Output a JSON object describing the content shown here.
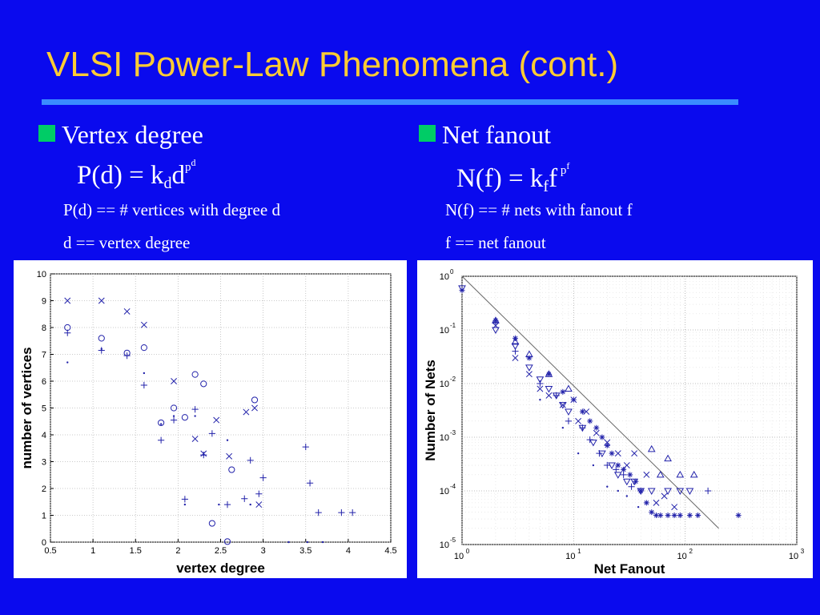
{
  "slide": {
    "title": "VLSI Power-Law Phenomena (cont.)",
    "colors": {
      "background": "#0a0aee",
      "title": "#ffcc33",
      "rule": "#3a8cff",
      "bullet": "#00cc66",
      "marker": "#2222aa"
    }
  },
  "left": {
    "bullet": "Vertex degree",
    "formula": {
      "lhs": "P(d) = k",
      "sub": "d",
      "base": "d",
      "exp": "p",
      "exp_sub": "d"
    },
    "notes": [
      "P(d) == # vertices with degree d",
      "d == vertex degree"
    ]
  },
  "right": {
    "bullet": "Net fanout",
    "formula": {
      "lhs": "N(f) = k",
      "sub": "f",
      "base": "f",
      "exp": "p",
      "exp_sub": "f"
    },
    "notes": [
      "N(f) == # nets with fanout f",
      "f == net fanout"
    ]
  },
  "chart_data": [
    {
      "type": "scatter",
      "title": "",
      "xlabel": "vertex degree",
      "ylabel": "number of vertices",
      "xlim": [
        0.5,
        4.5
      ],
      "ylim": [
        0,
        10
      ],
      "xticks": [
        "0.5",
        "1",
        "1.5",
        "2",
        "2.5",
        "3",
        "3.5",
        "4",
        "4.5"
      ],
      "yticks": [
        "0",
        "1",
        "2",
        "3",
        "4",
        "5",
        "6",
        "7",
        "8",
        "9",
        "10"
      ],
      "grid": true,
      "series": [
        {
          "marker": "x",
          "points": [
            [
              0.7,
              9.0
            ],
            [
              1.1,
              9.0
            ],
            [
              1.4,
              8.6
            ],
            [
              1.6,
              8.1
            ],
            [
              1.95,
              6.0
            ],
            [
              2.2,
              3.85
            ],
            [
              2.3,
              3.3
            ],
            [
              2.45,
              4.55
            ],
            [
              2.6,
              3.2
            ],
            [
              2.8,
              4.85
            ],
            [
              2.9,
              5.0
            ],
            [
              2.95,
              1.4
            ]
          ]
        },
        {
          "marker": "o",
          "points": [
            [
              0.7,
              8.0
            ],
            [
              1.1,
              7.6
            ],
            [
              1.4,
              7.05
            ],
            [
              1.6,
              7.25
            ],
            [
              1.8,
              4.45
            ],
            [
              1.95,
              5.0
            ],
            [
              2.08,
              4.65
            ],
            [
              2.2,
              6.25
            ],
            [
              2.3,
              5.9
            ],
            [
              2.4,
              0.7
            ],
            [
              2.58,
              0.02
            ],
            [
              2.63,
              2.7
            ],
            [
              2.9,
              5.3
            ]
          ]
        },
        {
          "marker": "+",
          "points": [
            [
              0.7,
              7.8
            ],
            [
              1.1,
              7.15
            ],
            [
              1.4,
              6.95
            ],
            [
              1.6,
              5.85
            ],
            [
              1.8,
              3.8
            ],
            [
              1.95,
              4.55
            ],
            [
              2.08,
              1.6
            ],
            [
              2.2,
              4.95
            ],
            [
              2.3,
              3.25
            ],
            [
              2.4,
              4.05
            ],
            [
              2.58,
              1.4
            ],
            [
              2.78,
              1.62
            ],
            [
              2.85,
              3.05
            ],
            [
              2.95,
              1.8
            ],
            [
              3.0,
              2.4
            ],
            [
              3.5,
              3.55
            ],
            [
              3.55,
              2.2
            ],
            [
              3.65,
              1.1
            ],
            [
              3.92,
              1.1
            ],
            [
              4.05,
              1.1
            ]
          ]
        },
        {
          "marker": ".",
          "points": [
            [
              0.7,
              6.7
            ],
            [
              1.1,
              7.2
            ],
            [
              1.6,
              6.3
            ],
            [
              1.8,
              4.4
            ],
            [
              1.95,
              4.7
            ],
            [
              2.08,
              1.4
            ],
            [
              2.2,
              4.7
            ],
            [
              2.3,
              3.25
            ],
            [
              2.48,
              1.4
            ],
            [
              2.58,
              3.8
            ],
            [
              2.85,
              1.4
            ],
            [
              3.3,
              0.0
            ],
            [
              3.52,
              0.0
            ],
            [
              3.7,
              0.0
            ]
          ]
        }
      ]
    },
    {
      "type": "scatter",
      "title": "",
      "xlabel": "Net Fanout",
      "ylabel": "Number of Nets",
      "x_scale": "log",
      "y_scale": "log",
      "xlim": [
        1,
        1000
      ],
      "ylim": [
        1e-05,
        1
      ],
      "xticks": [
        1,
        10,
        100,
        1000
      ],
      "yticks": [
        1e-05,
        0.0001,
        0.001,
        0.01,
        0.1,
        1
      ],
      "grid": true,
      "fit_line": {
        "from": [
          1,
          1
        ],
        "to": [
          200,
          2e-05
        ]
      },
      "series": [
        {
          "marker": "triangle-down",
          "points": [
            [
              1,
              0.6
            ],
            [
              2,
              0.1
            ],
            [
              3,
              0.05
            ],
            [
              4,
              0.02
            ],
            [
              5,
              0.012
            ],
            [
              6,
              0.008
            ],
            [
              7,
              0.006
            ],
            [
              8,
              0.004
            ],
            [
              9,
              0.003
            ],
            [
              12,
              0.0015
            ],
            [
              15,
              0.0008
            ],
            [
              18,
              0.0005
            ],
            [
              22,
              0.0003
            ],
            [
              25,
              0.0002
            ],
            [
              30,
              0.00015
            ],
            [
              35,
              0.00015
            ],
            [
              40,
              0.0001
            ],
            [
              50,
              0.0001
            ],
            [
              70,
              0.0001
            ],
            [
              90,
              0.0001
            ],
            [
              110,
              0.0001
            ]
          ]
        },
        {
          "marker": "triangle-up",
          "points": [
            [
              2,
              0.15
            ],
            [
              3,
              0.06
            ],
            [
              4,
              0.035
            ],
            [
              6,
              0.015
            ],
            [
              9,
              0.008
            ],
            [
              50,
              0.0006
            ],
            [
              60,
              0.0002
            ],
            [
              70,
              0.0004
            ],
            [
              90,
              0.0002
            ],
            [
              120,
              0.0002
            ]
          ]
        },
        {
          "marker": "x",
          "points": [
            [
              2,
              0.12
            ],
            [
              3,
              0.03
            ],
            [
              4,
              0.015
            ],
            [
              5,
              0.008
            ],
            [
              6,
              0.006
            ],
            [
              8,
              0.004
            ],
            [
              10,
              0.005
            ],
            [
              11,
              0.002
            ],
            [
              13,
              0.003
            ],
            [
              16,
              0.0012
            ],
            [
              20,
              0.0008
            ],
            [
              25,
              0.0005
            ],
            [
              30,
              0.0003
            ],
            [
              35,
              0.0005
            ],
            [
              45,
              0.0002
            ],
            [
              55,
              6e-05
            ],
            [
              65,
              8e-05
            ],
            [
              80,
              5e-05
            ]
          ]
        },
        {
          "marker": "+",
          "points": [
            [
              2,
              0.14
            ],
            [
              3,
              0.04
            ],
            [
              5,
              0.01
            ],
            [
              7,
              0.006
            ],
            [
              9,
              0.002
            ],
            [
              12,
              0.0015
            ],
            [
              14,
              0.0009
            ],
            [
              17,
              0.0005
            ],
            [
              20,
              0.0003
            ],
            [
              24,
              0.00025
            ],
            [
              28,
              0.0002
            ],
            [
              33,
              0.00012
            ],
            [
              40,
              0.0001
            ],
            [
              160,
              0.0001
            ]
          ]
        },
        {
          "marker": "asterisk",
          "points": [
            [
              1,
              0.55
            ],
            [
              2,
              0.15
            ],
            [
              3,
              0.07
            ],
            [
              4,
              0.03
            ],
            [
              6,
              0.015
            ],
            [
              8,
              0.007
            ],
            [
              10,
              0.005
            ],
            [
              12,
              0.003
            ],
            [
              14,
              0.002
            ],
            [
              16,
              0.0015
            ],
            [
              18,
              0.001
            ],
            [
              20,
              0.0007
            ],
            [
              22,
              0.0005
            ],
            [
              25,
              0.0003
            ],
            [
              28,
              0.00025
            ],
            [
              32,
              0.0002
            ],
            [
              36,
              0.00015
            ],
            [
              40,
              0.0001
            ],
            [
              45,
              6e-05
            ],
            [
              50,
              4e-05
            ],
            [
              55,
              3.5e-05
            ],
            [
              60,
              3.5e-05
            ],
            [
              70,
              3.5e-05
            ],
            [
              80,
              3.5e-05
            ],
            [
              90,
              3.5e-05
            ],
            [
              110,
              3.5e-05
            ],
            [
              130,
              3.5e-05
            ],
            [
              300,
              3.5e-05
            ]
          ]
        },
        {
          "marker": ".",
          "points": [
            [
              5,
              0.005
            ],
            [
              8,
              0.0015
            ],
            [
              11,
              0.0005
            ],
            [
              15,
              0.0003
            ],
            [
              20,
              0.00012
            ],
            [
              25,
              0.0001
            ],
            [
              30,
              8e-05
            ],
            [
              38,
              5e-05
            ]
          ]
        }
      ]
    }
  ]
}
